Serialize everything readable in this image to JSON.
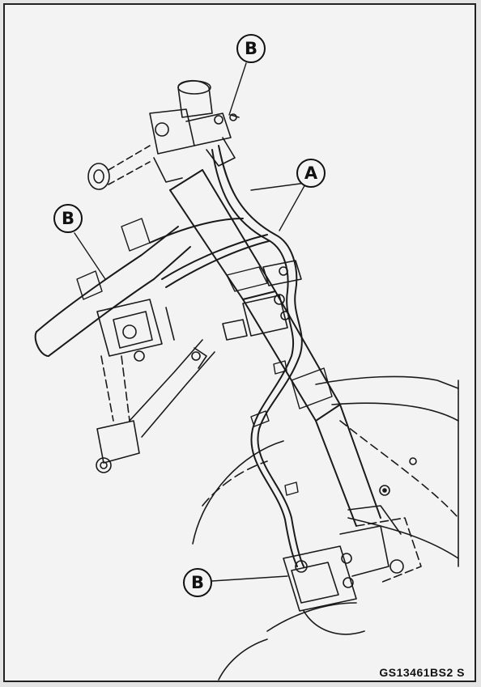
{
  "figure": {
    "code": "GS13461BS2  S",
    "callouts": {
      "a": "A",
      "b_top": "B",
      "b_left": "B",
      "b_bottom": "B"
    }
  }
}
